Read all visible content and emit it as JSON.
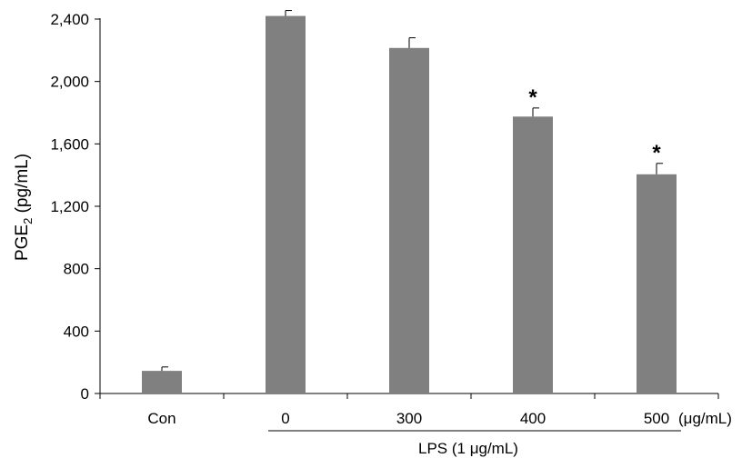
{
  "chart_data": {
    "type": "bar",
    "categories": [
      "Con",
      "0",
      "300",
      "400",
      "500"
    ],
    "values": [
      145,
      2420,
      2215,
      1775,
      1405
    ],
    "errors": [
      25,
      35,
      65,
      55,
      70
    ],
    "significance": [
      "",
      "",
      "",
      "*",
      "*"
    ],
    "bar_color": "#808080",
    "ylim": [
      0,
      2400
    ],
    "yticks": [
      0,
      400,
      800,
      1200,
      1600,
      2000,
      2400
    ],
    "ytick_labels": [
      "0",
      "400",
      "800",
      "1,200",
      "1,600",
      "2,000",
      "2,400"
    ],
    "ylabel_main": "PGE",
    "ylabel_sub": "2",
    "ylabel_unit": " (pg/mL)",
    "x_unit": "(μg/mL)",
    "group_label": "LPS (1 μg/mL)",
    "grid": false
  }
}
